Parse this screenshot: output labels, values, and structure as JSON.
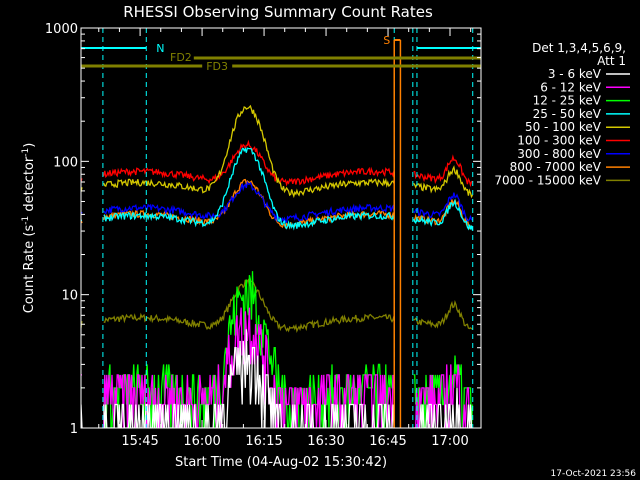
{
  "chart_data": {
    "type": "line",
    "title": "RHESSI Observing Summary Count Rates",
    "xlabel": "Start Time (04-Aug-02 15:30:42)",
    "ylabel": "Count Rate (s",
    "ylabel_sup1": "-1",
    "ylabel_mid": " detector",
    "ylabel_sup2": "-1",
    "ylabel_end": ")",
    "y_scale": "log",
    "ylim": [
      1,
      1000
    ],
    "xlim": [
      "15:30:42",
      "17:07:30"
    ],
    "x_ticks": [
      "15:45",
      "16:00",
      "16:15",
      "16:30",
      "16:45",
      "17:00"
    ],
    "y_ticks": [
      "1",
      "10",
      "100",
      "1000"
    ],
    "timestamp": "17-Oct-2021 23:56",
    "legend": {
      "header": [
        "Det 1,3,4,5,6,9,",
        "Att 1"
      ],
      "placement": "right"
    },
    "annotations": {
      "n_label": "N",
      "s_label": "S",
      "fd2_label": "FD2",
      "fd3_label": "FD3"
    },
    "series": [
      {
        "name": "3 - 6 keV",
        "color": "#ffffff",
        "baseline": 1.0,
        "peak": 4.0
      },
      {
        "name": "6 - 12 keV",
        "color": "#ff00ff",
        "baseline": 1.6,
        "peak": 7.0
      },
      {
        "name": "12 - 25 keV",
        "color": "#00ff00",
        "baseline": 1.7,
        "peak": 12
      },
      {
        "name": "25 - 50 keV",
        "color": "#00ffff",
        "baseline": 35,
        "peak": 140
      },
      {
        "name": "50 - 100 keV",
        "color": "#d4c800",
        "baseline": 62,
        "peak": 290
      },
      {
        "name": "100 - 300 keV",
        "color": "#ff0000",
        "baseline": 75,
        "peak": 150
      },
      {
        "name": "300 - 800 keV",
        "color": "#0000ff",
        "baseline": 40,
        "peak": 75
      },
      {
        "name": "800 - 7000 keV",
        "color": "#ff8000",
        "baseline": 36,
        "peak": 80
      },
      {
        "name": "7000 - 15000 keV",
        "color": "#808000",
        "baseline": 6,
        "peak": 14
      }
    ]
  }
}
